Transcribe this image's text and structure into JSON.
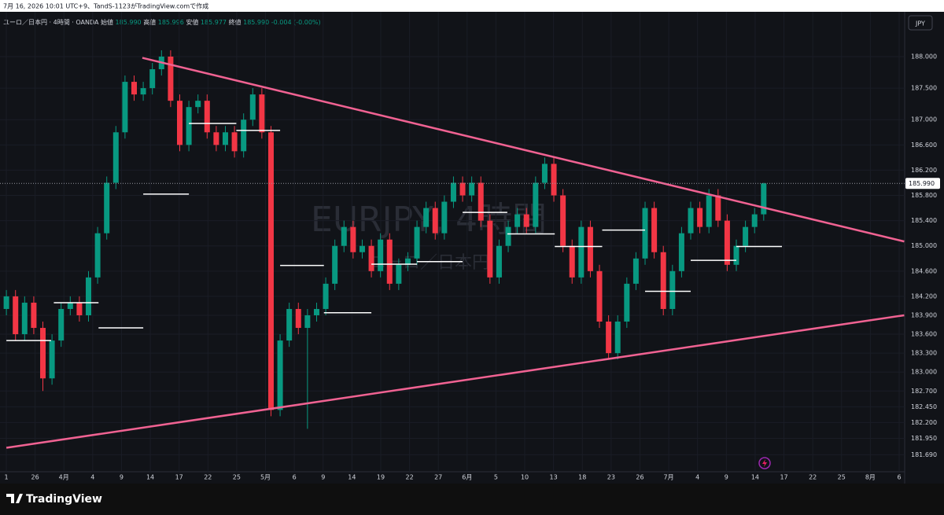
{
  "header": {
    "credit": "7月 16, 2026 10:01 UTC+9、TandS-1123がTradingView.comで作成"
  },
  "chart_data": {
    "type": "candlestick",
    "symbol": "ユーロ／日本円 · 4時間 · OANDA",
    "ohlc_legend": [
      {
        "label": "始値",
        "value": "185.990"
      },
      {
        "label": "高値",
        "value": "185.996"
      },
      {
        "label": "安値",
        "value": "185.977"
      },
      {
        "label": "終値",
        "value": "185.990"
      }
    ],
    "change": "-0.004 (-0.00%)",
    "watermark": "EURJPY, 4時間",
    "watermark_sub": "ユーロ／日本円",
    "currency": "JPY",
    "up_color": "#089981",
    "down_color": "#f23645",
    "open": [
      184.0,
      184.2,
      183.6,
      184.1,
      183.7,
      182.9,
      183.5,
      184.0,
      184.1,
      183.9,
      184.5,
      185.2,
      186.0,
      186.8,
      187.6,
      187.4,
      187.5,
      187.8,
      188.0,
      187.3,
      186.6,
      187.2,
      187.3,
      186.8,
      186.6,
      186.8,
      186.5,
      187.0,
      187.4,
      186.8,
      182.4,
      183.5,
      184.0,
      183.7,
      183.9,
      184.0,
      184.4,
      185.0,
      185.3,
      184.9,
      185.0,
      184.6,
      185.1,
      184.4,
      184.7,
      184.8,
      185.3,
      185.6,
      185.2,
      185.7,
      186.0,
      185.8,
      186.0,
      185.4,
      184.5,
      185.0,
      185.3,
      185.5,
      185.3,
      186.0,
      186.3,
      185.8,
      185.0,
      184.5,
      185.3,
      184.6,
      183.8,
      183.3,
      183.8,
      184.4,
      184.8,
      185.6,
      184.9,
      184.0,
      184.6,
      185.2,
      185.6,
      185.3,
      185.8,
      185.4,
      184.7,
      185.0,
      185.3,
      185.5
    ],
    "high": [
      184.3,
      184.3,
      184.2,
      184.2,
      183.8,
      183.6,
      184.1,
      184.2,
      184.2,
      184.6,
      185.3,
      186.1,
      186.9,
      187.7,
      187.7,
      187.6,
      187.9,
      188.1,
      188.1,
      187.4,
      187.3,
      187.4,
      187.4,
      186.9,
      186.9,
      186.9,
      187.1,
      187.5,
      187.5,
      186.9,
      183.6,
      184.1,
      184.1,
      184.0,
      184.1,
      184.5,
      185.1,
      185.4,
      185.4,
      185.1,
      185.1,
      185.2,
      185.2,
      184.8,
      184.9,
      185.4,
      185.7,
      185.7,
      185.8,
      186.1,
      186.1,
      186.1,
      186.1,
      185.5,
      185.1,
      185.4,
      185.6,
      185.6,
      186.1,
      186.4,
      186.4,
      185.9,
      185.1,
      185.4,
      185.4,
      184.7,
      183.9,
      183.9,
      184.5,
      184.9,
      185.7,
      185.7,
      185.0,
      184.7,
      185.3,
      185.7,
      185.7,
      185.9,
      185.9,
      185.5,
      185.1,
      185.4,
      185.6,
      186.0
    ],
    "low": [
      183.9,
      183.5,
      183.5,
      183.6,
      182.7,
      182.8,
      183.4,
      183.9,
      183.8,
      183.8,
      184.4,
      185.1,
      185.9,
      186.7,
      187.3,
      187.3,
      187.4,
      187.7,
      187.2,
      186.5,
      186.5,
      187.1,
      186.7,
      186.5,
      186.5,
      186.4,
      186.4,
      186.9,
      186.7,
      182.3,
      182.3,
      183.4,
      183.6,
      182.1,
      183.8,
      183.9,
      184.3,
      184.9,
      184.8,
      184.8,
      184.5,
      184.5,
      184.3,
      184.3,
      184.6,
      184.7,
      185.2,
      185.1,
      185.1,
      185.6,
      185.7,
      185.7,
      185.3,
      184.4,
      184.4,
      184.9,
      185.2,
      185.2,
      185.2,
      185.9,
      185.7,
      184.9,
      184.4,
      184.4,
      184.5,
      183.7,
      183.2,
      183.2,
      183.7,
      184.3,
      184.7,
      184.8,
      183.9,
      183.9,
      184.5,
      185.1,
      185.2,
      185.2,
      185.3,
      184.6,
      184.6,
      184.9,
      185.2,
      185.4
    ],
    "close": [
      184.2,
      183.6,
      184.1,
      183.7,
      182.9,
      183.5,
      184.0,
      184.1,
      183.9,
      184.5,
      185.2,
      186.0,
      186.8,
      187.6,
      187.4,
      187.5,
      187.8,
      188.0,
      187.3,
      186.6,
      187.2,
      187.3,
      186.8,
      186.6,
      186.8,
      186.5,
      187.0,
      187.4,
      186.8,
      182.4,
      183.5,
      184.0,
      183.7,
      183.9,
      184.0,
      184.4,
      185.0,
      185.3,
      184.9,
      185.0,
      184.6,
      185.1,
      184.4,
      184.7,
      184.8,
      185.3,
      185.6,
      185.2,
      185.7,
      186.0,
      185.8,
      186.0,
      185.4,
      184.5,
      185.0,
      185.3,
      185.5,
      185.3,
      186.0,
      186.3,
      185.8,
      185.0,
      184.5,
      185.3,
      184.6,
      183.8,
      183.3,
      183.8,
      184.4,
      184.8,
      185.6,
      184.9,
      184.0,
      184.6,
      185.2,
      185.6,
      185.3,
      185.8,
      185.4,
      184.7,
      185.0,
      185.3,
      185.5,
      185.99
    ],
    "xlim": [
      -0.7,
      98.45
    ],
    "ylim": [
      181.42,
      188.71
    ],
    "grid": true,
    "yticks": [
      {
        "value": 188,
        "label": "188.000"
      },
      {
        "value": 187.5,
        "label": "187.500"
      },
      {
        "value": 187,
        "label": "187.000"
      },
      {
        "value": 186.6,
        "label": "186.600"
      },
      {
        "value": 186.2,
        "label": "186.200"
      },
      {
        "value": 185.8,
        "label": "185.800"
      },
      {
        "value": 185.4,
        "label": "185.400"
      },
      {
        "value": 185,
        "label": "185.000"
      },
      {
        "value": 184.6,
        "label": "184.600"
      },
      {
        "value": 184.2,
        "label": "184.200"
      },
      {
        "value": 183.9,
        "label": "183.900"
      },
      {
        "value": 183.6,
        "label": "183.600"
      },
      {
        "value": 183.3,
        "label": "183.300"
      },
      {
        "value": 183,
        "label": "183.000"
      },
      {
        "value": 182.7,
        "label": "182.700"
      },
      {
        "value": 182.45,
        "label": "182.450"
      },
      {
        "value": 182.2,
        "label": "182.200"
      },
      {
        "value": 181.95,
        "label": "181.950"
      },
      {
        "value": 181.69,
        "label": "181.690"
      }
    ],
    "xtick_labels": [
      "1",
      "26",
      "4月",
      "4",
      "9",
      "14",
      "17",
      "22",
      "25",
      "5月",
      "6",
      "9",
      "14",
      "19",
      "22",
      "27",
      "6月",
      "5",
      "10",
      "13",
      "18",
      "23",
      "26",
      "7月",
      "4",
      "9",
      "14",
      "17",
      "22",
      "25",
      "8月",
      "6"
    ],
    "last_price": {
      "value": 185.99,
      "label": "185.990"
    },
    "trendline_color": "#f06292",
    "trendlines": [
      {
        "x": [
          14.9,
          98.4
        ],
        "y": [
          187.98,
          185.07
        ]
      },
      {
        "x": [
          0,
          98.4
        ],
        "y": [
          181.8,
          183.9
        ]
      }
    ],
    "level_color": "#ffffff",
    "levels": [
      {
        "x": [
          0,
          4.9
        ],
        "y": 183.5
      },
      {
        "x": [
          5.2,
          10.1
        ],
        "y": 184.1
      },
      {
        "x": [
          10.1,
          15
        ],
        "y": 183.7
      },
      {
        "x": [
          15,
          20
        ],
        "y": 185.82
      },
      {
        "x": [
          20,
          25.2
        ],
        "y": 186.94
      },
      {
        "x": [
          25.2,
          30
        ],
        "y": 186.83
      },
      {
        "x": [
          30,
          34.8
        ],
        "y": 184.69
      },
      {
        "x": [
          34.8,
          40
        ],
        "y": 183.94
      },
      {
        "x": [
          40,
          45
        ],
        "y": 184.71
      },
      {
        "x": [
          45,
          50
        ],
        "y": 184.75
      },
      {
        "x": [
          50,
          54.9
        ],
        "y": 185.53
      },
      {
        "x": [
          54.9,
          60.1
        ],
        "y": 185.19
      },
      {
        "x": [
          60.1,
          65.3
        ],
        "y": 184.99
      },
      {
        "x": [
          65.3,
          70
        ],
        "y": 185.25
      },
      {
        "x": [
          70,
          75
        ],
        "y": 184.28
      },
      {
        "x": [
          75,
          80
        ],
        "y": 184.77
      },
      {
        "x": [
          80,
          85
        ],
        "y": 184.99
      }
    ]
  },
  "footer": {
    "brand": "TradingView"
  }
}
